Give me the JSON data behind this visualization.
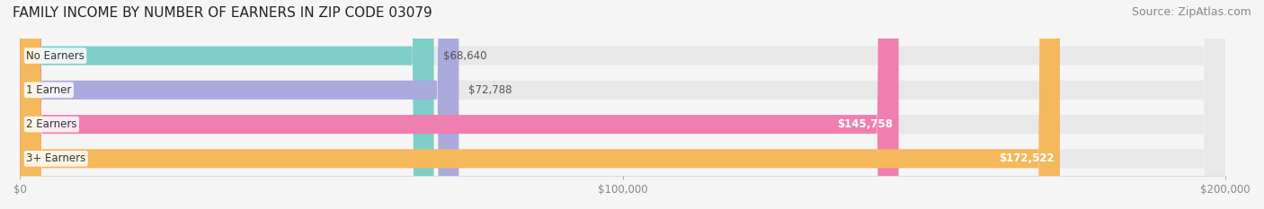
{
  "title": "FAMILY INCOME BY NUMBER OF EARNERS IN ZIP CODE 03079",
  "source": "Source: ZipAtlas.com",
  "categories": [
    "No Earners",
    "1 Earner",
    "2 Earners",
    "3+ Earners"
  ],
  "values": [
    68640,
    72788,
    145758,
    172522
  ],
  "labels": [
    "$68,640",
    "$72,788",
    "$145,758",
    "$172,522"
  ],
  "bar_colors": [
    "#7ECECA",
    "#AAAADD",
    "#F07EB0",
    "#F5B85A"
  ],
  "bg_colors": [
    "#EFEFEF",
    "#EFEFEF",
    "#EFEFEF",
    "#EFEFEF"
  ],
  "xmax": 200000,
  "xticks": [
    0,
    100000,
    200000
  ],
  "xtick_labels": [
    "$0",
    "$100,000",
    "$200,000"
  ],
  "title_fontsize": 11,
  "label_fontsize": 9,
  "source_fontsize": 9,
  "background_color": "#F5F5F5"
}
